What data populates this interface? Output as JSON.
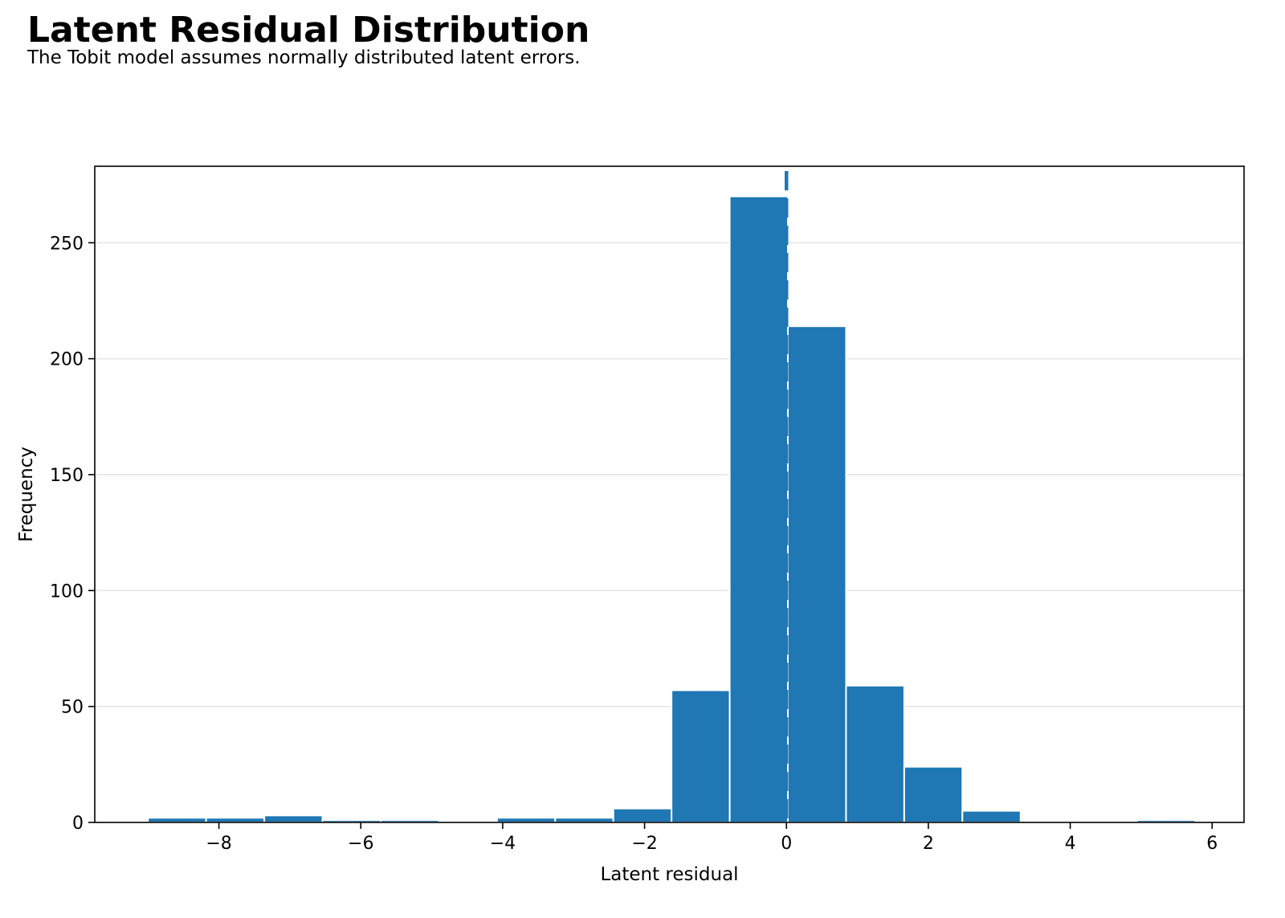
{
  "title": "Latent Residual Distribution",
  "subtitle": "The Tobit model assumes normally distributed latent errors.",
  "colors": {
    "bar": "#1f77b4",
    "bar_edge": "#ffffff",
    "grid": "#e6e6e6",
    "axis": "#000000",
    "reference_line": "#1f77b4"
  },
  "chart_data": {
    "type": "bar",
    "subtype": "histogram",
    "xlabel": "Latent residual",
    "ylabel": "Frequency",
    "xlim": [
      -9.75,
      6.45
    ],
    "ylim": [
      0,
      283
    ],
    "xticks": [
      -8,
      -6,
      -4,
      -2,
      0,
      2,
      4,
      6
    ],
    "xtick_labels": [
      "−8",
      "−6",
      "−4",
      "−2",
      "0",
      "2",
      "4",
      "6"
    ],
    "yticks": [
      0,
      50,
      100,
      150,
      200,
      250
    ],
    "ytick_labels": [
      "0",
      "50",
      "100",
      "150",
      "200",
      "250"
    ],
    "grid": "horizontal",
    "reference_line": {
      "x": 0,
      "style": "dashed"
    },
    "bins": [
      {
        "start": -9.0,
        "end": -8.18,
        "count": 2
      },
      {
        "start": -8.18,
        "end": -7.36,
        "count": 2
      },
      {
        "start": -7.36,
        "end": -6.54,
        "count": 3
      },
      {
        "start": -6.54,
        "end": -5.72,
        "count": 1
      },
      {
        "start": -5.72,
        "end": -4.9,
        "count": 1
      },
      {
        "start": -4.9,
        "end": -4.08,
        "count": 0
      },
      {
        "start": -4.08,
        "end": -3.26,
        "count": 2
      },
      {
        "start": -3.26,
        "end": -2.44,
        "count": 2
      },
      {
        "start": -2.44,
        "end": -1.62,
        "count": 6
      },
      {
        "start": -1.62,
        "end": -0.8,
        "count": 57
      },
      {
        "start": -0.8,
        "end": 0.02,
        "count": 270
      },
      {
        "start": 0.02,
        "end": 0.84,
        "count": 214
      },
      {
        "start": 0.84,
        "end": 1.66,
        "count": 59
      },
      {
        "start": 1.66,
        "end": 2.48,
        "count": 24
      },
      {
        "start": 2.48,
        "end": 3.3,
        "count": 5
      },
      {
        "start": 3.3,
        "end": 4.12,
        "count": 0
      },
      {
        "start": 4.12,
        "end": 4.94,
        "count": 0
      },
      {
        "start": 4.94,
        "end": 5.76,
        "count": 1
      }
    ]
  }
}
